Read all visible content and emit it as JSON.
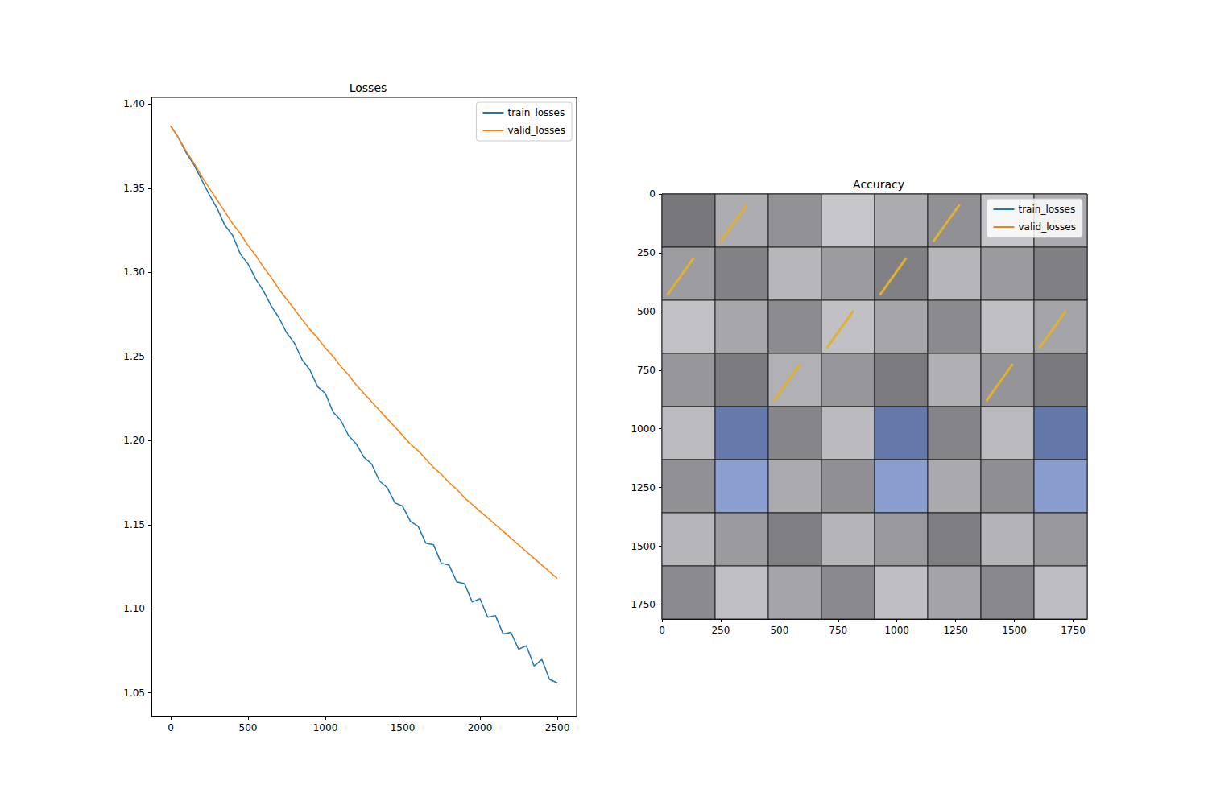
{
  "chart_data": [
    {
      "type": "line",
      "title": "Losses",
      "x": [
        0,
        50,
        100,
        150,
        200,
        250,
        300,
        350,
        400,
        450,
        500,
        550,
        600,
        650,
        700,
        750,
        800,
        850,
        900,
        950,
        1000,
        1050,
        1100,
        1150,
        1200,
        1250,
        1300,
        1350,
        1400,
        1450,
        1500,
        1550,
        1600,
        1650,
        1700,
        1750,
        1800,
        1850,
        1900,
        1950,
        2000,
        2050,
        2100,
        2150,
        2200,
        2250,
        2300,
        2350,
        2400,
        2450,
        2500
      ],
      "series": [
        {
          "name": "train_losses",
          "color": "#1f77b4",
          "values": [
            1.387,
            1.38,
            1.371,
            1.364,
            1.355,
            1.346,
            1.338,
            1.328,
            1.322,
            1.311,
            1.305,
            1.296,
            1.289,
            1.28,
            1.273,
            1.264,
            1.258,
            1.248,
            1.242,
            1.232,
            1.228,
            1.217,
            1.212,
            1.203,
            1.198,
            1.19,
            1.186,
            1.176,
            1.172,
            1.163,
            1.161,
            1.152,
            1.149,
            1.139,
            1.138,
            1.127,
            1.126,
            1.116,
            1.115,
            1.104,
            1.106,
            1.095,
            1.096,
            1.085,
            1.086,
            1.076,
            1.078,
            1.066,
            1.07,
            1.058,
            1.056
          ]
        },
        {
          "name": "valid_losses",
          "color": "#ff7f0e",
          "values": [
            1.387,
            1.38,
            1.372,
            1.365,
            1.357,
            1.35,
            1.343,
            1.336,
            1.329,
            1.323,
            1.316,
            1.31,
            1.303,
            1.297,
            1.29,
            1.284,
            1.278,
            1.272,
            1.266,
            1.261,
            1.255,
            1.25,
            1.244,
            1.239,
            1.233,
            1.228,
            1.223,
            1.218,
            1.213,
            1.208,
            1.203,
            1.198,
            1.194,
            1.189,
            1.184,
            1.18,
            1.175,
            1.171,
            1.166,
            1.162,
            1.158,
            1.154,
            1.15,
            1.146,
            1.142,
            1.138,
            1.134,
            1.13,
            1.126,
            1.122,
            1.118
          ]
        }
      ],
      "xlim": [
        -125,
        2625
      ],
      "xticks": [
        0,
        500,
        1000,
        1500,
        2000,
        2500
      ],
      "ylim": [
        1.036,
        1.404
      ],
      "yticks": [
        1.05,
        {
          "value": 1.1,
          "label": "1.10"
        },
        1.15,
        {
          "value": 1.2,
          "label": "1.20"
        },
        1.25,
        {
          "value": 1.3,
          "label": "1.30"
        },
        1.35,
        {
          "value": 1.4,
          "label": "1.40"
        }
      ],
      "grid": false,
      "legend": "upper right"
    },
    {
      "type": "image",
      "title": "Accuracy",
      "series": [
        {
          "name": "train_losses",
          "color": "#1f77b4",
          "values": []
        },
        {
          "name": "valid_losses",
          "color": "#ff7f0e",
          "values": []
        }
      ],
      "xlim": [
        0,
        1810
      ],
      "xticks": [
        0,
        250,
        500,
        750,
        1000,
        1250,
        1500,
        1750
      ],
      "ylim": [
        1810,
        0
      ],
      "yticks": [
        0,
        250,
        500,
        750,
        1000,
        1250,
        1500,
        1750
      ],
      "grid": false,
      "legend": "upper right"
    }
  ]
}
